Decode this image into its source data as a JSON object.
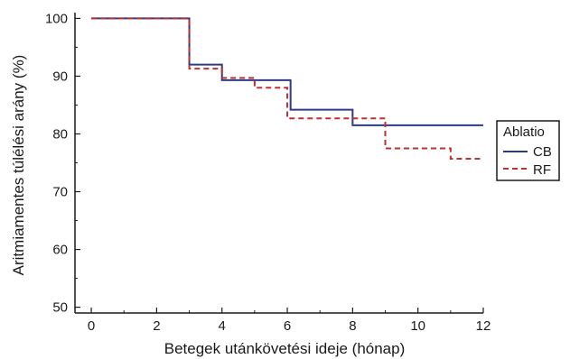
{
  "chart_data": {
    "type": "line",
    "step": true,
    "xlabel": "Betegek utánkövetési ideje (hónap)",
    "ylabel": "Aritmiamentes túlélési arány (%)",
    "xlim": [
      -0.5,
      12
    ],
    "ylim": [
      49,
      101
    ],
    "xticks": [
      "0",
      "2",
      "4",
      "6",
      "8",
      "10",
      "12"
    ],
    "yticks": [
      "50",
      "60",
      "70",
      "80",
      "90",
      "100"
    ],
    "legend": {
      "title": "Ablatio",
      "placement": "right"
    },
    "series": [
      {
        "name": "CB",
        "color": "#2e3a87",
        "dash": "solid",
        "points": [
          [
            0,
            100
          ],
          [
            3,
            100
          ],
          [
            3,
            92
          ],
          [
            4,
            92
          ],
          [
            4,
            89.3
          ],
          [
            6.1,
            89.3
          ],
          [
            6.1,
            84.2
          ],
          [
            8,
            84.2
          ],
          [
            8,
            81.5
          ],
          [
            12,
            81.5
          ]
        ]
      },
      {
        "name": "RF",
        "color": "#c0302e",
        "dash": "dashed",
        "points": [
          [
            0,
            100
          ],
          [
            3,
            100
          ],
          [
            3,
            91.3
          ],
          [
            4,
            91.3
          ],
          [
            4,
            89.7
          ],
          [
            5,
            89.7
          ],
          [
            5,
            88
          ],
          [
            6,
            88
          ],
          [
            6,
            82.7
          ],
          [
            9,
            82.7
          ],
          [
            9,
            77.5
          ],
          [
            11,
            77.5
          ],
          [
            11,
            75.7
          ],
          [
            12,
            75.7
          ]
        ]
      }
    ]
  }
}
